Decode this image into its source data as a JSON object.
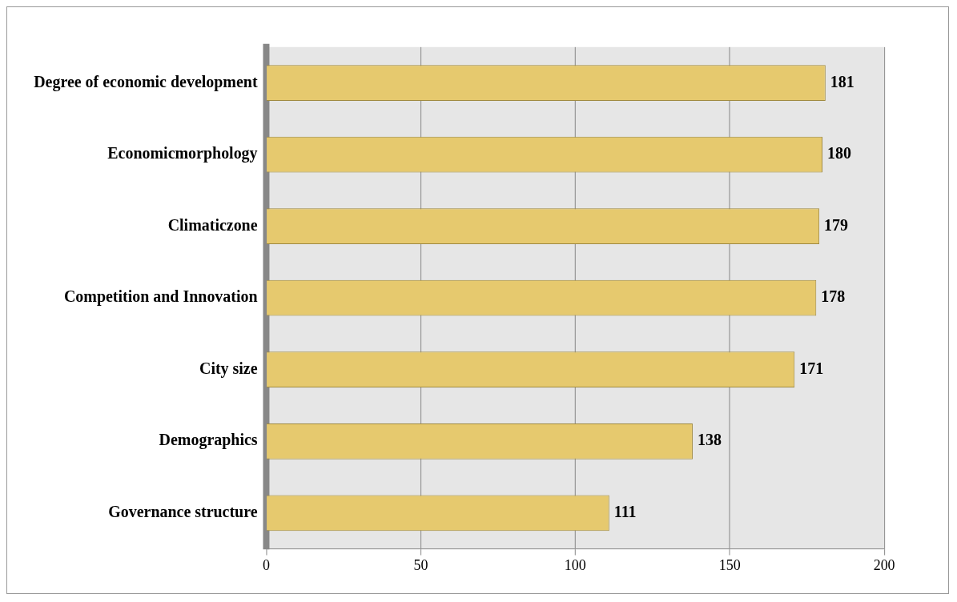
{
  "chart_data": {
    "type": "bar",
    "orientation": "horizontal",
    "categories": [
      "Degree of economic development",
      "Economicmorphology",
      "Climaticzone",
      "Competition and Innovation",
      "City size",
      "Demographics",
      "Governance structure"
    ],
    "values": [
      181,
      180,
      179,
      178,
      171,
      138,
      111
    ],
    "color": "#e6c96e",
    "xlim": [
      0,
      200
    ],
    "xticks": [
      0,
      50,
      100,
      150,
      200
    ],
    "grid": "x",
    "data_labels": true,
    "legend": false
  }
}
